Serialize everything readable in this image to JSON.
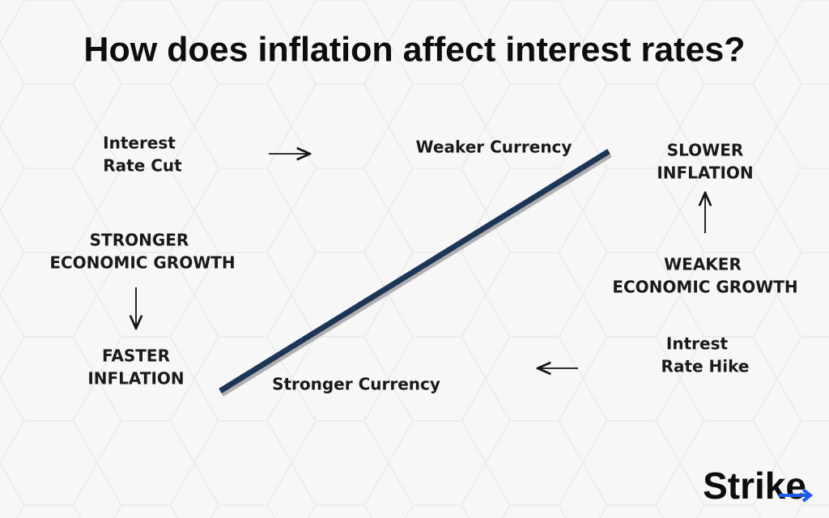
{
  "header": {
    "title": "How does inflation affect interest rates?"
  },
  "nodes": [
    {
      "lines": [
        "Interest",
        "Rate Cut"
      ]
    },
    {
      "lines": [
        "Weaker Currency"
      ]
    },
    {
      "lines": [
        "SLOWER",
        "INFLATION"
      ]
    },
    {
      "lines": [
        "WEAKER",
        "ECONOMIC GROWTH"
      ]
    },
    {
      "lines": [
        "Intrest",
        "Rate Hike"
      ]
    },
    {
      "lines": [
        "Stronger Currency"
      ]
    },
    {
      "lines": [
        "STRONGER",
        "ECONOMIC GROWTH"
      ]
    },
    {
      "lines": [
        "FASTER",
        "INFLATION"
      ]
    }
  ],
  "logo": {
    "text": "Strike"
  }
}
